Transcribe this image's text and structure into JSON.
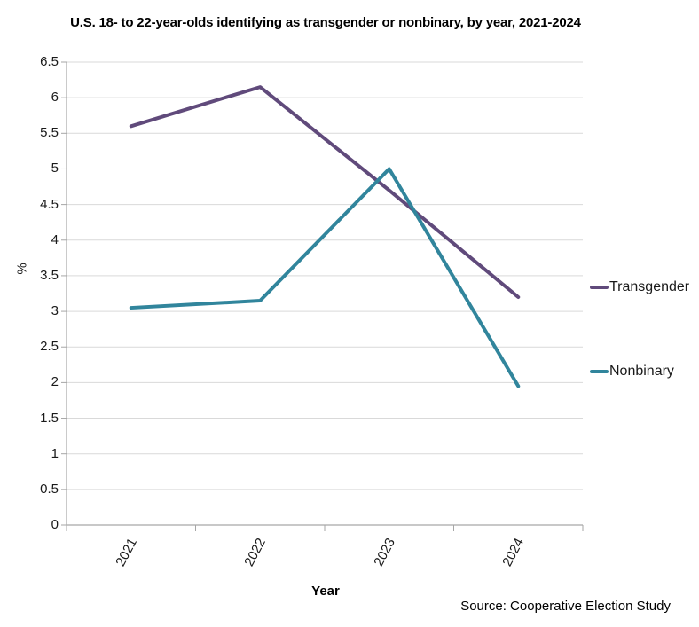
{
  "title": "U.S. 18- to 22-year-olds identifying as transgender or nonbinary, by year, 2021-2024",
  "source": "Source: Cooperative Election Study",
  "chart_data": {
    "type": "line",
    "title": "U.S. 18- to 22-year-olds identifying as transgender or nonbinary, by year, 2021-2024",
    "categories": [
      "2021",
      "2022",
      "2023",
      "2024"
    ],
    "series": [
      {
        "name": "Transgender",
        "color": "#604A7B",
        "values": [
          5.6,
          6.15,
          4.7,
          3.2
        ]
      },
      {
        "name": "Nonbinary",
        "color": "#31859C",
        "values": [
          3.05,
          3.15,
          5.0,
          1.95
        ]
      }
    ],
    "xlabel": "Year",
    "ylabel": "%",
    "ylim": [
      0,
      6.5
    ],
    "yticks": [
      "0",
      "0.5",
      "1",
      "1.5",
      "2",
      "2.5",
      "3",
      "3.5",
      "4",
      "4.5",
      "5",
      "5.5",
      "6",
      "6.5"
    ],
    "grid": true,
    "legend_position": "right",
    "colors": {
      "gridline": "#D9D9D9",
      "axis": "#A6A6A6",
      "text": "#1A1A1A"
    }
  }
}
